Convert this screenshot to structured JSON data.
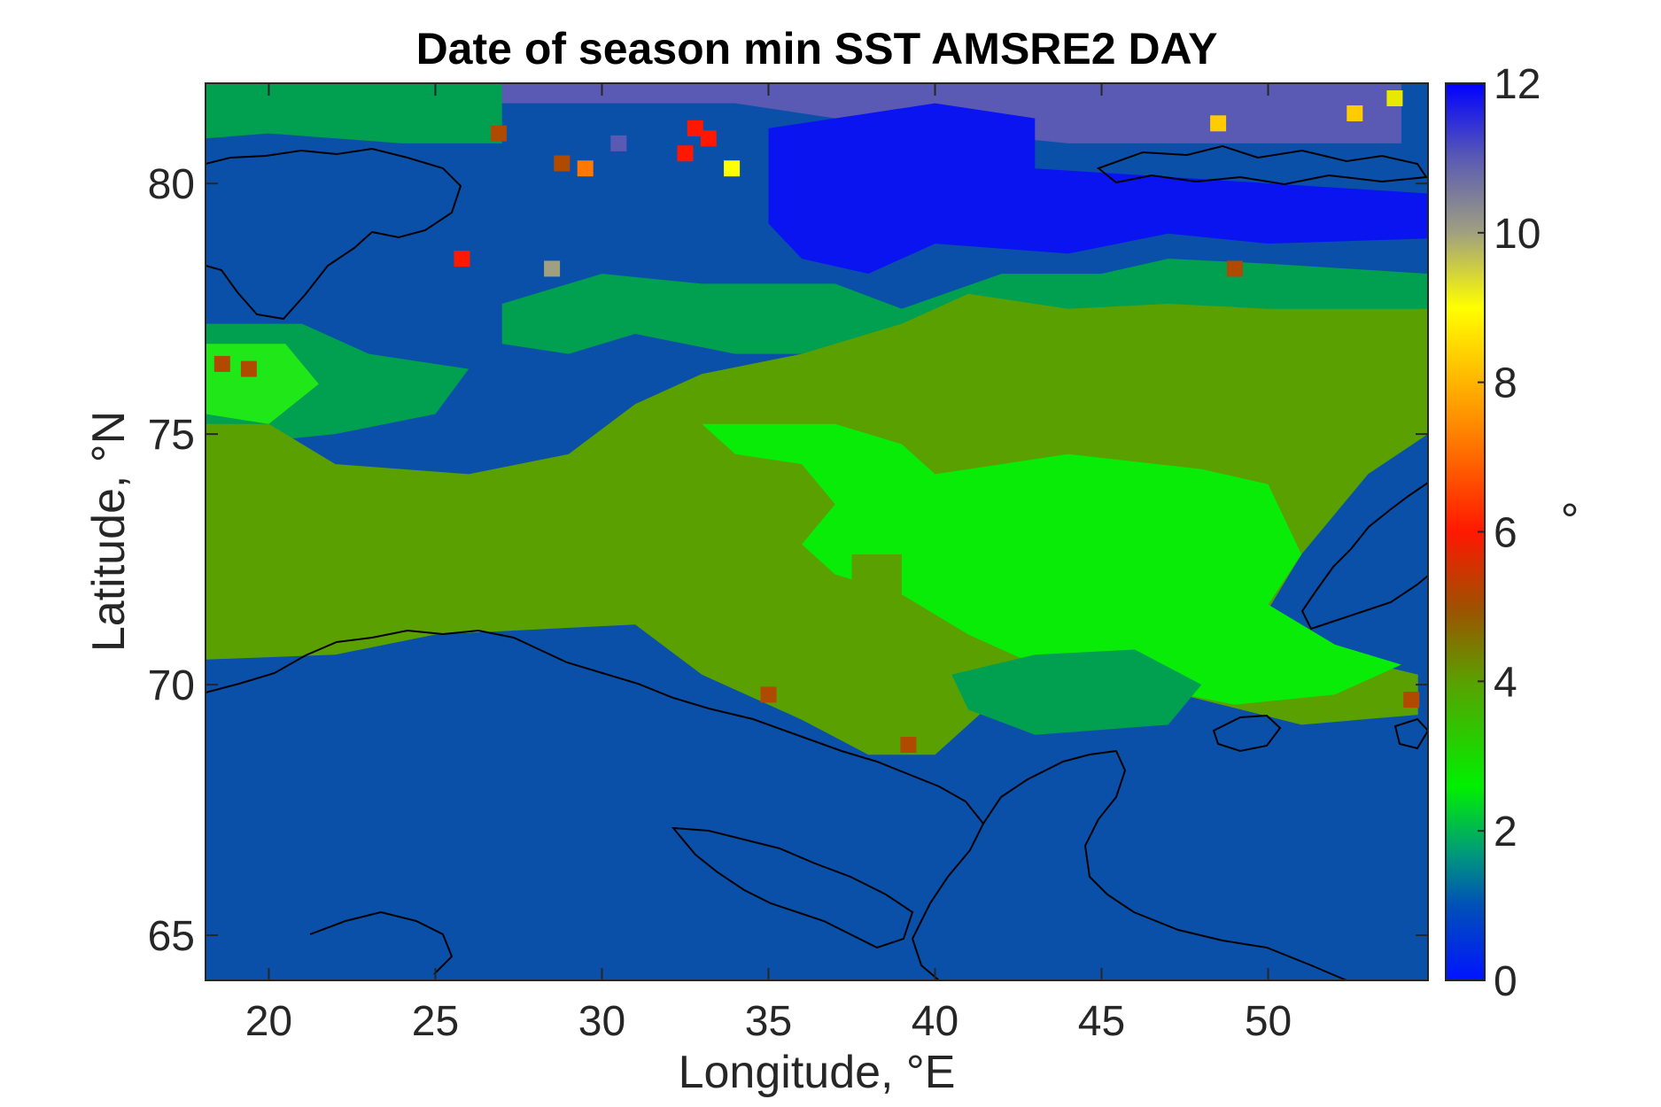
{
  "chart_data": {
    "type": "heatmap",
    "title": "Date of season min SST AMSRE2 DAY",
    "xlabel": "Longitude, °E",
    "ylabel": "Latitude, °N",
    "xlim": [
      18.1,
      54.8
    ],
    "ylim": [
      64.1,
      82.0
    ],
    "x_ticks": [
      20,
      25,
      30,
      35,
      40,
      45,
      50
    ],
    "y_ticks": [
      65,
      70,
      75,
      80
    ],
    "colorbar": {
      "label": "°",
      "range": [
        0,
        12
      ],
      "ticks": [
        0,
        2,
        4,
        6,
        8,
        10,
        12
      ],
      "colormap_stops": [
        {
          "v": 0,
          "color": "#0014ff"
        },
        {
          "v": 1,
          "color": "#0050b8"
        },
        {
          "v": 1.7,
          "color": "#009a7a"
        },
        {
          "v": 2.6,
          "color": "#00f000"
        },
        {
          "v": 4,
          "color": "#5aa000"
        },
        {
          "v": 5,
          "color": "#a05000"
        },
        {
          "v": 6,
          "color": "#ff1800"
        },
        {
          "v": 7.4,
          "color": "#ff8800"
        },
        {
          "v": 9,
          "color": "#ffff00"
        },
        {
          "v": 10,
          "color": "#a0a080"
        },
        {
          "v": 11,
          "color": "#5a5ab4"
        },
        {
          "v": 12,
          "color": "#0000ff"
        }
      ]
    },
    "regions": [
      {
        "value": 1,
        "color": "#0a50a8",
        "desc": "background ocean"
      },
      {
        "value": 11,
        "color": "#5a5ab4",
        "polygon": [
          [
            24.5,
            82
          ],
          [
            54,
            82
          ],
          [
            54,
            80.8
          ],
          [
            44,
            80.8
          ],
          [
            38,
            81.2
          ],
          [
            34,
            81.6
          ],
          [
            24.5,
            81.6
          ]
        ]
      },
      {
        "value": 12,
        "color": "#0a14f0",
        "polygon": [
          [
            35,
            81.1
          ],
          [
            38,
            81.4
          ],
          [
            40,
            81.6
          ],
          [
            43,
            81.3
          ],
          [
            43,
            80.3
          ],
          [
            54.8,
            79.8
          ],
          [
            54.8,
            78.9
          ],
          [
            50,
            78.8
          ],
          [
            47,
            79.0
          ],
          [
            44,
            78.6
          ],
          [
            40,
            78.8
          ],
          [
            38,
            78.2
          ],
          [
            36,
            78.5
          ],
          [
            35,
            79.2
          ]
        ]
      },
      {
        "value": 2,
        "color": "#00a050",
        "polygon": [
          [
            18.1,
            82
          ],
          [
            27,
            82
          ],
          [
            27,
            80.8
          ],
          [
            24,
            80.8
          ],
          [
            20,
            81.0
          ],
          [
            18.1,
            80.9
          ]
        ]
      },
      {
        "value": 2,
        "color": "#00a050",
        "polygon": [
          [
            18.1,
            77.2
          ],
          [
            21,
            77.2
          ],
          [
            23,
            76.6
          ],
          [
            26,
            76.3
          ],
          [
            25,
            75.4
          ],
          [
            22,
            75.0
          ],
          [
            19,
            74.8
          ],
          [
            18.1,
            75.0
          ]
        ]
      },
      {
        "value": 2,
        "color": "#00a050",
        "polygon": [
          [
            27,
            77.6
          ],
          [
            30,
            78.2
          ],
          [
            33,
            78.0
          ],
          [
            37,
            78.0
          ],
          [
            39,
            77.5
          ],
          [
            42,
            78.2
          ],
          [
            45,
            78.2
          ],
          [
            47,
            78.5
          ],
          [
            50,
            78.4
          ],
          [
            54.8,
            78.2
          ],
          [
            54.8,
            77.2
          ],
          [
            48,
            76.8
          ],
          [
            44,
            77.5
          ],
          [
            41,
            77.2
          ],
          [
            38,
            76.6
          ],
          [
            34,
            76.6
          ],
          [
            31,
            77.0
          ],
          [
            29,
            76.6
          ],
          [
            27,
            76.8
          ]
        ]
      },
      {
        "value": 3,
        "color": "#20e818",
        "polygon": [
          [
            18.1,
            76.8
          ],
          [
            20.5,
            76.8
          ],
          [
            21.5,
            76.0
          ],
          [
            20,
            75.2
          ],
          [
            18.1,
            75.4
          ]
        ]
      },
      {
        "value": 4,
        "color": "#5aa000",
        "polygon": [
          [
            18.1,
            75.2
          ],
          [
            20,
            75.2
          ],
          [
            22,
            74.4
          ],
          [
            26,
            74.2
          ],
          [
            29,
            74.6
          ],
          [
            31,
            75.6
          ],
          [
            33,
            76.2
          ],
          [
            36,
            76.6
          ],
          [
            39,
            77.2
          ],
          [
            41,
            77.8
          ],
          [
            44,
            77.5
          ],
          [
            47,
            77.6
          ],
          [
            50,
            77.5
          ],
          [
            54.8,
            77.5
          ],
          [
            54.8,
            75.0
          ],
          [
            53,
            74.2
          ],
          [
            51,
            72.6
          ],
          [
            50,
            71.5
          ],
          [
            52,
            70.6
          ],
          [
            54.5,
            70.2
          ],
          [
            54.5,
            69.4
          ],
          [
            51,
            69.2
          ],
          [
            48,
            69.7
          ],
          [
            45,
            70.2
          ],
          [
            42,
            69.8
          ],
          [
            40,
            68.6
          ],
          [
            38,
            68.6
          ],
          [
            36,
            69.3
          ],
          [
            33,
            70.2
          ],
          [
            31,
            71.2
          ],
          [
            25,
            71.0
          ],
          [
            22,
            70.6
          ],
          [
            18.1,
            70.5
          ]
        ]
      },
      {
        "value": 3,
        "color": "#08ec08",
        "polygon": [
          [
            33,
            75.2
          ],
          [
            37,
            75.2
          ],
          [
            39,
            74.8
          ],
          [
            40,
            74.2
          ],
          [
            44,
            74.6
          ],
          [
            48,
            74.3
          ],
          [
            50,
            74.0
          ],
          [
            51,
            72.6
          ],
          [
            50,
            71.6
          ],
          [
            52,
            70.8
          ],
          [
            54,
            70.4
          ],
          [
            52,
            69.8
          ],
          [
            49,
            69.6
          ],
          [
            46,
            70.0
          ],
          [
            43,
            70.4
          ],
          [
            41,
            71.0
          ],
          [
            39,
            71.8
          ],
          [
            37,
            72.2
          ],
          [
            36,
            72.8
          ],
          [
            37,
            73.6
          ],
          [
            36,
            74.4
          ],
          [
            34,
            74.6
          ]
        ]
      },
      {
        "value": 2,
        "color": "#00a050",
        "polygon": [
          [
            40.5,
            70.2
          ],
          [
            43,
            70.6
          ],
          [
            46,
            70.7
          ],
          [
            48,
            70.0
          ],
          [
            47,
            69.2
          ],
          [
            43,
            69.0
          ],
          [
            41,
            69.5
          ]
        ]
      },
      {
        "value": 4,
        "color": "#5aa000",
        "polygon": [
          [
            37.5,
            72.6
          ],
          [
            39,
            72.6
          ],
          [
            39,
            71.8
          ],
          [
            37.5,
            71.8
          ]
        ]
      }
    ],
    "speckles": [
      {
        "lon": 18.6,
        "lat": 76.4,
        "value": 5,
        "color": "#b04a00"
      },
      {
        "lon": 19.4,
        "lat": 76.3,
        "value": 5,
        "color": "#b04a00"
      },
      {
        "lon": 25.8,
        "lat": 78.5,
        "value": 6,
        "color": "#ff1800"
      },
      {
        "lon": 32.8,
        "lat": 81.1,
        "value": 6,
        "color": "#ff1800"
      },
      {
        "lon": 33.2,
        "lat": 80.9,
        "value": 6,
        "color": "#ff1800"
      },
      {
        "lon": 32.5,
        "lat": 80.6,
        "value": 6,
        "color": "#ff1800"
      },
      {
        "lon": 33.9,
        "lat": 80.3,
        "value": 8,
        "color": "#ffff00"
      },
      {
        "lon": 29.5,
        "lat": 80.3,
        "value": 7,
        "color": "#ff7800"
      },
      {
        "lon": 48.5,
        "lat": 81.2,
        "value": 8,
        "color": "#ffcc00"
      },
      {
        "lon": 53.8,
        "lat": 81.7,
        "value": 9,
        "color": "#e8e800"
      },
      {
        "lon": 52.6,
        "lat": 81.4,
        "value": 8,
        "color": "#ffcc00"
      },
      {
        "lon": 49.0,
        "lat": 78.3,
        "value": 5,
        "color": "#b04a00"
      },
      {
        "lon": 35.0,
        "lat": 69.8,
        "value": 5,
        "color": "#b04a00"
      },
      {
        "lon": 39.2,
        "lat": 68.8,
        "value": 5,
        "color": "#b04a00"
      },
      {
        "lon": 54.3,
        "lat": 69.7,
        "value": 5,
        "color": "#b04a00"
      },
      {
        "lon": 28.5,
        "lat": 78.3,
        "value": 10,
        "color": "#a0a080"
      },
      {
        "lon": 30.5,
        "lat": 80.8,
        "value": 11,
        "color": "#5a5ab4"
      },
      {
        "lon": 28.8,
        "lat": 80.4,
        "value": 5,
        "color": "#b04a00"
      },
      {
        "lon": 26.9,
        "lat": 81.0,
        "value": 5,
        "color": "#b04a00"
      }
    ]
  }
}
